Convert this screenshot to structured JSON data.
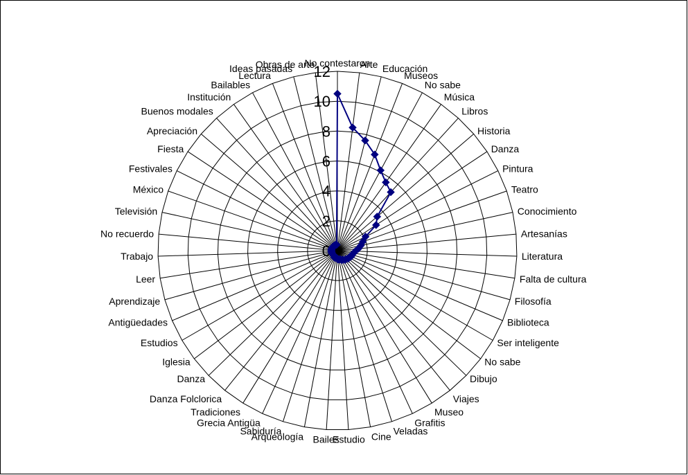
{
  "chart_data": {
    "type": "radar",
    "title": "",
    "rmax": 12,
    "tick_step": 2,
    "ticks": [
      "0",
      "2",
      "4",
      "6",
      "8",
      "10",
      "12"
    ],
    "categories": [
      "No contestaron",
      "Arte",
      "Educación",
      "Museos",
      "No sabe",
      "Música",
      "Libros",
      "Historia",
      "Danza",
      "Pintura",
      "Teatro",
      "Conocimiento",
      "Artesanías",
      "Literatura",
      "Falta de cultura",
      "Filosofía",
      "Biblioteca",
      "Ser inteligente",
      "No sabe",
      "Dibujo",
      "Viajes",
      "Museo",
      "Grafitis",
      "Veladas",
      "Cine",
      "Estudio",
      "Bailes",
      "Arqueología",
      "Sabiduría",
      "Grecia Antigüa",
      "Tradiciones",
      "Danza Folclorica",
      "Danza",
      "Iglesia",
      "Estudios",
      "Antigüedades",
      "Aprendizaje",
      "Leer",
      "Trabajo",
      "No recuerdo",
      "Televisión",
      "México",
      "Festivales",
      "Fiesta",
      "Apreciación",
      "Buenos modales",
      "Institución",
      "Bailables",
      "Lectura",
      "Ideas pasadas",
      "Obras de arte"
    ],
    "series": [
      {
        "values": [
          10.5,
          8.3,
          7.6,
          6.9,
          6.1,
          5.6,
          5.3,
          3.5,
          3.1,
          2.1,
          1.8,
          1.6,
          1.4,
          1.2,
          1.1,
          1.0,
          1.0,
          0.9,
          0.9,
          0.8,
          0.8,
          0.7,
          0.7,
          0.6,
          0.6,
          0.6,
          0.5,
          0.5,
          0.5,
          0.5,
          0.4,
          0.4,
          0.4,
          0.4,
          0.4,
          0.4,
          0.4,
          0.4,
          0.4,
          0.4,
          0.4,
          0.4,
          0.4,
          0.4,
          0.4,
          0.4,
          0.4,
          0.4,
          0.4,
          0.4,
          0.4
        ],
        "color": "#000080"
      }
    ],
    "grid": true,
    "legend": "none"
  },
  "colors": {
    "line": "#000080",
    "grid": "#000000",
    "frame": "#000000"
  }
}
